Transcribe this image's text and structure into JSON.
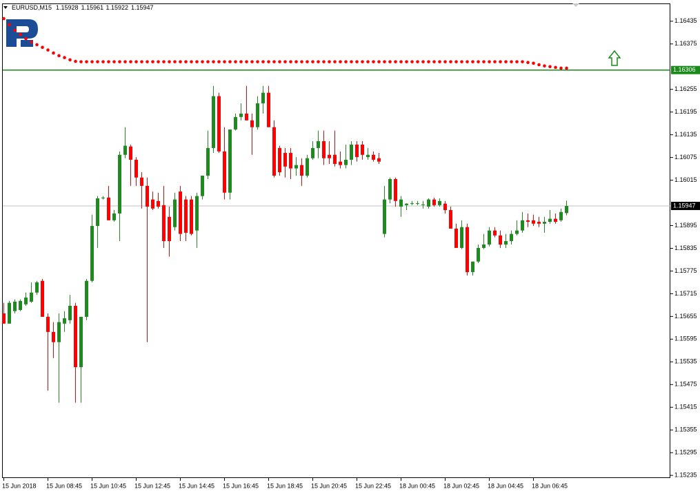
{
  "chart_data": {
    "type": "candlestick",
    "title": "EURUSD,M15",
    "categories": [
      "15 Jun 2018",
      null,
      null,
      null,
      null,
      null,
      null,
      null,
      "15 Jun 08:45",
      null,
      null,
      null,
      null,
      null,
      null,
      null,
      "15 Jun 10:45",
      null,
      null,
      null,
      null,
      null,
      null,
      null,
      "15 Jun 12:45",
      null,
      null,
      null,
      null,
      null,
      null,
      null,
      "15 Jun 14:45",
      null,
      null,
      null,
      null,
      null,
      null,
      null,
      "15 Jun 16:45",
      null,
      null,
      null,
      null,
      null,
      null,
      null,
      "15 Jun 18:45",
      null,
      null,
      null,
      null,
      null,
      null,
      null,
      "15 Jun 20:45",
      null,
      null,
      null,
      null,
      null,
      null,
      null,
      "15 Jun 22:45",
      null,
      null,
      null,
      null,
      null,
      null,
      null,
      "18 Jun 00:45",
      null,
      null,
      null,
      null,
      null,
      null,
      null,
      "18 Jun 02:45",
      null,
      null,
      null,
      null,
      null,
      null,
      null,
      "18 Jun 04:45",
      null,
      null,
      null,
      null,
      null,
      null,
      null,
      "18 Jun 06:45",
      null,
      null,
      null,
      null,
      null,
      null
    ],
    "open": [
      1.15663,
      1.15636,
      1.15669,
      1.15672,
      1.15687,
      1.15694,
      1.15718,
      1.15749,
      1.15654,
      1.15614,
      1.15587,
      1.15636,
      1.15645,
      1.15683,
      1.15521,
      1.15654,
      1.15749,
      1.15894,
      1.15967,
      1.15969,
      1.15909,
      1.15927,
      1.16082,
      1.16104,
      1.16069,
      1.16022,
      1.16,
      1.15964,
      1.1596,
      1.15949,
      1.15918,
      1.15891,
      1.15985,
      1.15964,
      1.15964,
      1.15882,
      1.15973,
      1.16027,
      1.161,
      1.16237,
      1.16091,
      1.15982,
      1.16149,
      1.16182,
      1.16191,
      1.16173,
      1.16155,
      1.16218,
      1.16246,
      1.16155,
      1.161,
      1.16087,
      1.16087,
      1.16046,
      1.16055,
      1.16027,
      1.16073,
      1.161,
      1.16118,
      1.16082,
      1.16082,
      1.16064,
      1.16055,
      1.16069,
      1.16109,
      1.16109,
      1.16076,
      1.16082,
      1.16073,
      1.15873,
      1.15964,
      1.16018,
      1.15945,
      1.15949,
      1.15953,
      1.15953,
      1.15949,
      1.15945,
      1.15964,
      1.15949,
      1.15953,
      1.15936,
      1.15887,
      1.15836,
      1.15891,
      1.15772,
      1.158,
      1.15836,
      1.15845,
      1.15882,
      1.15869,
      1.15845,
      1.15854,
      1.15873,
      1.15882,
      1.15909,
      1.15909,
      1.15905,
      1.159,
      1.15905,
      1.15913,
      1.15909,
      1.15928
    ],
    "high": [
      1.15691,
      1.15696,
      1.157,
      1.157,
      1.15718,
      1.15745,
      1.15749,
      1.15754,
      1.15663,
      1.1564,
      1.15663,
      1.15669,
      1.15712,
      1.15691,
      1.15654,
      1.15754,
      1.15924,
      1.15973,
      1.15973,
      1.16,
      1.15936,
      1.16091,
      1.16155,
      1.16109,
      1.16076,
      1.16036,
      1.16022,
      1.15985,
      1.15982,
      1.16,
      1.15945,
      1.15982,
      1.16,
      1.15973,
      1.15973,
      1.15982,
      1.16022,
      1.16146,
      1.16264,
      1.16246,
      1.16155,
      1.16149,
      1.16191,
      1.16218,
      1.16264,
      1.16191,
      1.16237,
      1.16264,
      1.16264,
      1.16173,
      1.16106,
      1.161,
      1.161,
      1.16076,
      1.16073,
      1.16082,
      1.16118,
      1.16146,
      1.16146,
      1.16118,
      1.16146,
      1.16091,
      1.16109,
      1.16118,
      1.16118,
      1.16118,
      1.161,
      1.16091,
      1.16087,
      1.16,
      1.16022,
      1.16022,
      1.15973,
      1.15954,
      1.1596,
      1.1596,
      1.1596,
      1.15967,
      1.15969,
      1.15967,
      1.1596,
      1.15945,
      1.159,
      1.15909,
      1.159,
      1.158,
      1.15845,
      1.15873,
      1.15891,
      1.15891,
      1.15882,
      1.15873,
      1.15882,
      1.15909,
      1.15931,
      1.15927,
      1.15924,
      1.15918,
      1.15918,
      1.15936,
      1.15927,
      1.1594,
      1.15961
    ],
    "low": [
      1.15636,
      1.15636,
      1.15663,
      1.15669,
      1.15683,
      1.15691,
      1.15712,
      1.15654,
      1.15459,
      1.15545,
      1.15427,
      1.15614,
      1.15636,
      1.15427,
      1.15427,
      1.15645,
      1.15745,
      1.15836,
      1.15964,
      1.15909,
      1.15905,
      1.15854,
      1.16073,
      1.16,
      1.16,
      1.1594,
      1.15587,
      1.15936,
      1.1594,
      1.15836,
      1.15813,
      1.15882,
      1.15854,
      1.15854,
      1.15869,
      1.15836,
      1.15964,
      1.16018,
      1.16087,
      1.16087,
      1.15964,
      1.15964,
      1.16146,
      1.16173,
      1.16173,
      1.16082,
      1.16149,
      1.16191,
      1.16155,
      1.16022,
      1.16027,
      1.16022,
      1.16018,
      1.16027,
      1.16,
      1.16022,
      1.16069,
      1.16073,
      1.16055,
      1.16058,
      1.16051,
      1.16046,
      1.16046,
      1.16055,
      1.16064,
      1.16069,
      1.16069,
      1.16064,
      1.16058,
      1.15864,
      1.15954,
      1.15945,
      1.15918,
      1.15936,
      1.15949,
      1.15949,
      1.1594,
      1.1594,
      1.15945,
      1.15945,
      1.15927,
      1.15887,
      1.15836,
      1.15833,
      1.15763,
      1.15763,
      1.15796,
      1.15833,
      1.1584,
      1.15864,
      1.15836,
      1.15836,
      1.15845,
      1.15869,
      1.15876,
      1.15891,
      1.15894,
      1.15891,
      1.15876,
      1.159,
      1.159,
      1.15905,
      1.15922
    ],
    "close": [
      1.15636,
      1.15691,
      1.15694,
      1.15696,
      1.15705,
      1.15718,
      1.15745,
      1.15654,
      1.15614,
      1.15587,
      1.1564,
      1.1565,
      1.15683,
      1.15521,
      1.15654,
      1.15749,
      1.15894,
      1.15967,
      1.15969,
      1.15909,
      1.15927,
      1.16082,
      1.16106,
      1.16069,
      1.16022,
      1.16,
      1.15945,
      1.1594,
      1.15945,
      1.15854,
      1.15854,
      1.15964,
      1.15873,
      1.15876,
      1.15873,
      1.15973,
      1.16027,
      1.161,
      1.16237,
      1.16091,
      1.15982,
      1.16149,
      1.16182,
      1.16191,
      1.16173,
      1.16155,
      1.16218,
      1.16246,
      1.16155,
      1.16027,
      1.16036,
      1.16051,
      1.16046,
      1.16055,
      1.16027,
      1.16073,
      1.161,
      1.16118,
      1.16073,
      1.16073,
      1.16058,
      1.16055,
      1.16069,
      1.16109,
      1.16076,
      1.16082,
      1.16082,
      1.16069,
      1.16064,
      1.15964,
      1.16018,
      1.1596,
      1.15964,
      1.15953,
      1.15954,
      1.15954,
      1.15951,
      1.15964,
      1.15949,
      1.1596,
      1.15936,
      1.15887,
      1.15836,
      1.15891,
      1.15772,
      1.158,
      1.15836,
      1.15845,
      1.15882,
      1.15869,
      1.15845,
      1.15854,
      1.15873,
      1.15882,
      1.15909,
      1.15905,
      1.159,
      1.159,
      1.15905,
      1.15913,
      1.15905,
      1.15931,
      1.15947
    ],
    "up_color": "#1f8a1f",
    "down_color": "#ff0000",
    "indicator": {
      "color": "#ff0000",
      "values": [
        1.16442,
        1.16426,
        1.16411,
        1.164,
        1.16389,
        1.1638,
        1.16373,
        1.16366,
        1.16359,
        1.16351,
        1.16344,
        1.16339,
        1.16333,
        1.16329,
        1.16328,
        1.16328,
        1.16328,
        1.16328,
        1.16328,
        1.16328,
        1.16328,
        1.16328,
        1.16328,
        1.16328,
        1.16328,
        1.16328,
        1.16328,
        1.16328,
        1.16328,
        1.16328,
        1.16328,
        1.16328,
        1.16328,
        1.16328,
        1.16328,
        1.16328,
        1.16328,
        1.16328,
        1.16328,
        1.16328,
        1.16328,
        1.16328,
        1.16328,
        1.16328,
        1.16328,
        1.16328,
        1.16328,
        1.16328,
        1.16328,
        1.16328,
        1.16328,
        1.16328,
        1.16328,
        1.16328,
        1.16328,
        1.16328,
        1.16328,
        1.16328,
        1.16328,
        1.16328,
        1.16328,
        1.16328,
        1.16328,
        1.16328,
        1.16328,
        1.16328,
        1.16328,
        1.16328,
        1.16328,
        1.16328,
        1.16328,
        1.16328,
        1.16328,
        1.16328,
        1.16328,
        1.16328,
        1.16328,
        1.16328,
        1.16328,
        1.16328,
        1.16328,
        1.16328,
        1.16328,
        1.16328,
        1.16328,
        1.16328,
        1.16328,
        1.16328,
        1.16328,
        1.16328,
        1.16328,
        1.16328,
        1.16328,
        1.16328,
        1.16328,
        1.16326,
        1.16324,
        1.1632,
        1.16317,
        1.16315,
        1.16313,
        1.16311,
        1.16311
      ]
    },
    "levels": [
      {
        "value": 1.16306,
        "color": "#1a8a1a"
      }
    ],
    "current_color": "#c0c0c0",
    "ylim": [
      1.15228,
      1.16482
    ],
    "yticks": [
      1.16435,
      1.16375,
      1.16255,
      1.16195,
      1.16135,
      1.16075,
      1.16015,
      1.15895,
      1.15835,
      1.15775,
      1.15715,
      1.15655,
      1.15595,
      1.15535,
      1.15475,
      1.15415,
      1.15355,
      1.15295,
      1.15235
    ]
  }
}
